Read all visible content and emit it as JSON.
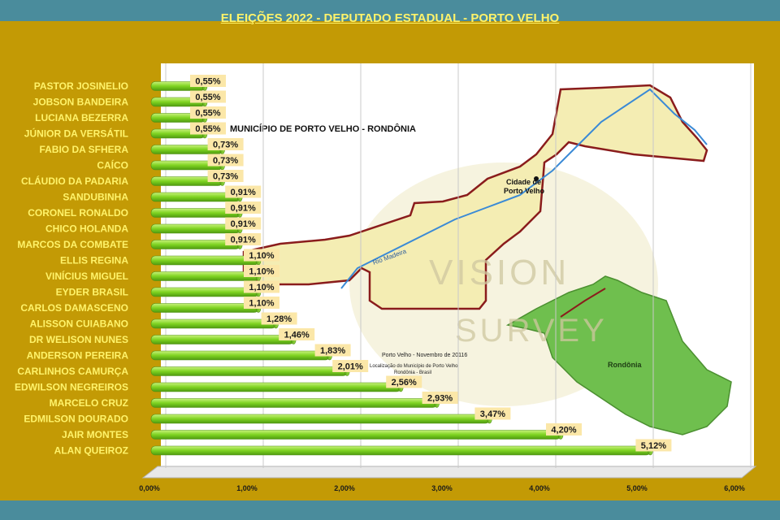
{
  "chart_data": {
    "type": "bar",
    "orientation": "horizontal",
    "title": "ELEIÇÕES 2022 - DEPUTADO ESTADUAL  - PORTO VELHO",
    "categories": [
      "PASTOR JOSINELIO",
      "JOBSON BANDEIRA",
      "LUCIANA BEZERRA",
      "JÚNIOR DA VERSÁTIL",
      "FABIO DA SFHERA",
      "CAÍCO",
      "CLÁUDIO DA PADARIA",
      "SANDUBINHA",
      "CORONEL RONALDO",
      "CHICO HOLANDA",
      "MARCOS DA COMBATE",
      "ELLIS REGINA",
      "VINÍCIUS MIGUEL",
      "EYDER BRASIL",
      "CARLOS DAMASCENO",
      "ALISSON CUIABANO",
      "DR WELISON NUNES",
      "ANDERSON PEREIRA",
      "CARLINHOS CAMURÇA",
      "EDWILSON NEGREIROS",
      "MARCELO CRUZ",
      "EDMILSON DOURADO",
      "JAIR MONTES",
      "ALAN QUEIROZ"
    ],
    "values": [
      0.55,
      0.55,
      0.55,
      0.55,
      0.73,
      0.73,
      0.73,
      0.91,
      0.91,
      0.91,
      0.91,
      1.1,
      1.1,
      1.1,
      1.1,
      1.28,
      1.46,
      1.83,
      2.01,
      2.56,
      2.93,
      3.47,
      4.2,
      5.12
    ],
    "value_labels": [
      "0,55%",
      "0,55%",
      "0,55%",
      "0,55%",
      "0,73%",
      "0,73%",
      "0,73%",
      "0,91%",
      "0,91%",
      "0,91%",
      "0,91%",
      "1,10%",
      "1,10%",
      "1,10%",
      "1,10%",
      "1,28%",
      "1,46%",
      "1,83%",
      "2,01%",
      "2,56%",
      "2,93%",
      "3,47%",
      "4,20%",
      "5,12%"
    ],
    "xlim": [
      0,
      6
    ],
    "ticks": [
      0,
      1,
      2,
      3,
      4,
      5,
      6
    ],
    "tick_labels": [
      "0,00%",
      "1,00%",
      "2,00%",
      "3,00%",
      "4,00%",
      "5,00%",
      "6,00%"
    ],
    "grid": true,
    "legend": "none"
  },
  "background_map": {
    "heading": "MUNICÍPIO DE PORTO VELHO - RONDÔNIA",
    "city_label_1": "Cidade de",
    "city_label_2": "Porto Velho",
    "river_label": "Rio Madeira",
    "state_label": "Rondônia",
    "footer_1": "Porto Velho - Novembro de 20116",
    "footer_2": "Localização do Município de Porto Velho",
    "footer_3": "Rondônia - Brasil",
    "watermark_1": "VISION",
    "watermark_2": "SURVEY"
  },
  "colors": {
    "frame": "#c39a05",
    "background": "#4a8c9c",
    "title": "#fff36a",
    "category_text": "#fff36a",
    "bar": "#7ed321",
    "label_box": "#fbe7a8"
  }
}
